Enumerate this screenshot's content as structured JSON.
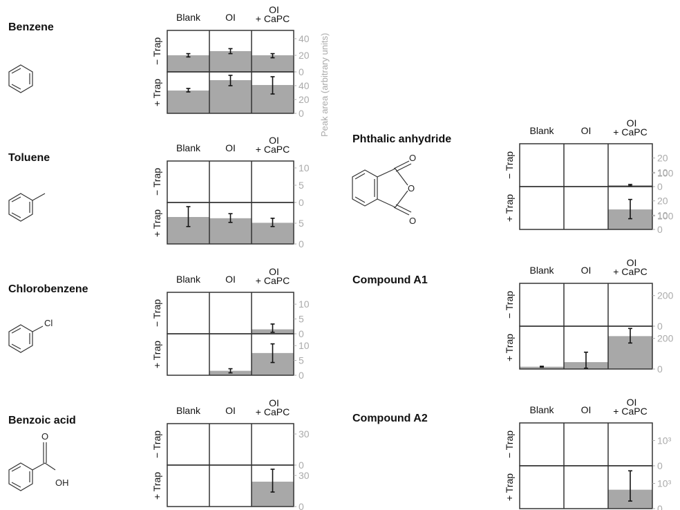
{
  "columns": [
    "Blank",
    "OI",
    "OI",
    "+ CaPC"
  ],
  "row_labels": [
    "− Trap",
    "+ Trap"
  ],
  "y_axis_label": "Peak area (arbitrary units)",
  "colors": {
    "bar": "#a8a8a8",
    "frame": "#333333",
    "tick": "#aaaaaa"
  },
  "chart_data": [
    {
      "type": "bar",
      "compound": "Benzene",
      "structure": "benzene-icon",
      "categories": [
        "Blank",
        "OI",
        "OI + CaPC"
      ],
      "panels": [
        {
          "condition": "− Trap",
          "ylim": [
            0,
            50
          ],
          "ticks": [
            "0",
            "20",
            "40"
          ],
          "values": [
            20,
            25,
            20
          ],
          "err": [
            [
              18,
              22
            ],
            [
              22,
              28
            ],
            [
              17,
              22
            ]
          ]
        },
        {
          "condition": "+ Trap",
          "ylim": [
            0,
            60
          ],
          "ticks": [
            "0",
            "20",
            "40"
          ],
          "values": [
            33,
            48,
            41
          ],
          "err": [
            [
              31,
              36
            ],
            [
              40,
              55
            ],
            [
              28,
              53
            ]
          ]
        }
      ]
    },
    {
      "type": "bar",
      "compound": "Toluene",
      "structure": "toluene-icon",
      "categories": [
        "Blank",
        "OI",
        "OI + CaPC"
      ],
      "panels": [
        {
          "condition": "− Trap",
          "ylim": [
            0,
            12
          ],
          "ticks": [
            "0",
            "5",
            "10"
          ],
          "values": [
            0,
            0,
            0
          ],
          "err": [
            null,
            null,
            null
          ]
        },
        {
          "condition": "+ Trap",
          "ylim": [
            0,
            10
          ],
          "ticks": [
            "0",
            "5"
          ],
          "values": [
            6.5,
            6.2,
            5.1
          ],
          "err": [
            [
              4.2,
              9.0
            ],
            [
              5.2,
              7.3
            ],
            [
              4.2,
              6.2
            ]
          ]
        }
      ]
    },
    {
      "type": "bar",
      "compound": "Chlorobenzene",
      "structure": "chlorobenzene-icon",
      "categories": [
        "Blank",
        "OI",
        "OI + CaPC"
      ],
      "panels": [
        {
          "condition": "− Trap",
          "ylim": [
            0,
            14
          ],
          "ticks": [
            "0",
            "5",
            "10"
          ],
          "values": [
            0,
            0,
            1.5
          ],
          "err": [
            null,
            null,
            [
              0.5,
              3.3
            ]
          ]
        },
        {
          "condition": "+ Trap",
          "ylim": [
            0,
            14
          ],
          "ticks": [
            "0",
            "5",
            "10"
          ],
          "values": [
            0,
            1.5,
            7.5
          ],
          "err": [
            null,
            [
              0.8,
              2.2
            ],
            [
              4.3,
              10.6
            ]
          ]
        }
      ]
    },
    {
      "type": "bar",
      "compound": "Benzoic acid",
      "structure": "benzoic-acid-icon",
      "categories": [
        "Blank",
        "OI",
        "OI + CaPC"
      ],
      "panels": [
        {
          "condition": "− Trap",
          "ylim": [
            0,
            40
          ],
          "ticks": [
            "0",
            "30"
          ],
          "values": [
            0,
            0,
            0
          ],
          "err": [
            null,
            null,
            null
          ]
        },
        {
          "condition": "+ Trap",
          "ylim": [
            0,
            40
          ],
          "ticks": [
            "0",
            "30"
          ],
          "values": [
            0,
            0,
            24
          ],
          "err": [
            null,
            null,
            [
              14,
              36
            ]
          ]
        }
      ]
    },
    {
      "type": "bar",
      "compound": "Phthalic anhydride",
      "structure": "phthalic-anhydride-icon",
      "categories": [
        "Blank",
        "OI",
        "OI + CaPC"
      ],
      "panels": [
        {
          "condition": "− Trap",
          "ylim": [
            0,
            30
          ],
          "ticks": [
            "0",
            "10",
            "20"
          ],
          "values": [
            0,
            0,
            1
          ],
          "err": [
            null,
            null,
            [
              0.5,
              1.5
            ]
          ]
        },
        {
          "condition": "+ Trap",
          "ylim": [
            0,
            30
          ],
          "ticks": [
            "0",
            "10",
            "20"
          ],
          "values": [
            0,
            0,
            14
          ],
          "err": [
            null,
            null,
            [
              7.5,
              21
            ]
          ]
        }
      ]
    },
    {
      "type": "bar",
      "compound": "Compound A1",
      "structure": "",
      "categories": [
        "Blank",
        "OI",
        "OI + CaPC"
      ],
      "panels": [
        {
          "condition": "− Trap",
          "ylim": [
            0,
            280
          ],
          "ticks": [
            "0",
            "100",
            "200"
          ],
          "values": [
            0,
            0,
            0
          ],
          "err": [
            null,
            null,
            null
          ]
        },
        {
          "condition": "+ Trap",
          "ylim": [
            0,
            280
          ],
          "ticks": [
            "0",
            "100",
            "200"
          ],
          "values": [
            15,
            45,
            215
          ],
          "err": [
            [
              12,
              18
            ],
            [
              5,
              110
            ],
            [
              170,
              265
            ]
          ]
        }
      ]
    },
    {
      "type": "bar",
      "compound": "Compound A2",
      "structure": "",
      "categories": [
        "Blank",
        "OI",
        "OI + CaPC"
      ],
      "panels": [
        {
          "condition": "− Trap",
          "ylim": [
            0,
            1700
          ],
          "ticks": [
            "0",
            "10³"
          ],
          "values": [
            0,
            0,
            0
          ],
          "err": [
            null,
            null,
            null
          ]
        },
        {
          "condition": "+ Trap",
          "ylim": [
            0,
            1700
          ],
          "ticks": [
            "0",
            "10³"
          ],
          "values": [
            0,
            0,
            750
          ],
          "err": [
            null,
            null,
            [
              300,
              1500
            ]
          ]
        }
      ]
    }
  ]
}
